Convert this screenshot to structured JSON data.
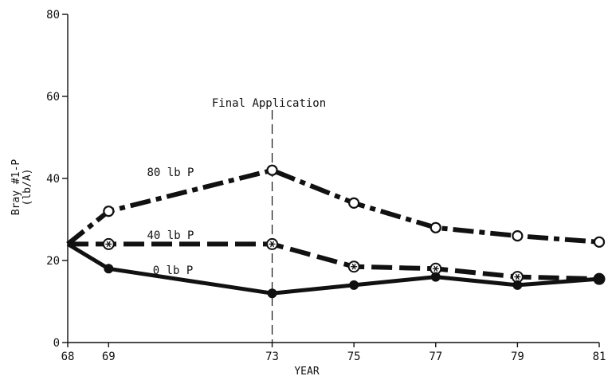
{
  "chart_data": {
    "type": "line",
    "title": "",
    "xlabel": "YEAR",
    "ylabel": "Bray #1-P\n(lb/A)",
    "xlim": [
      68,
      81
    ],
    "ylim": [
      0,
      80
    ],
    "x_ticks": [
      68,
      69,
      73,
      75,
      77,
      79,
      81
    ],
    "y_ticks": [
      0,
      20,
      40,
      60,
      80
    ],
    "grid": false,
    "series": [
      {
        "name": "80 lb P",
        "marker": "open-circle",
        "line": "dash-dot",
        "x": [
          68,
          69,
          73,
          75,
          77,
          79,
          81
        ],
        "y": [
          24,
          32,
          42,
          34,
          28,
          26,
          24.5
        ]
      },
      {
        "name": "40 lb P",
        "marker": "asterisk-circle",
        "line": "dashed",
        "x": [
          68,
          69,
          73,
          75,
          77,
          79,
          81
        ],
        "y": [
          24,
          24,
          24,
          18.5,
          18,
          16,
          15.5
        ]
      },
      {
        "name": "0 lb P",
        "marker": "filled-circle",
        "line": "solid",
        "x": [
          68,
          69,
          73,
          75,
          77,
          79,
          81
        ],
        "y": [
          24,
          18,
          12,
          14,
          16,
          14,
          15.5
        ]
      }
    ],
    "annotations": [
      {
        "text": "Final Application",
        "x": 73
      }
    ]
  }
}
